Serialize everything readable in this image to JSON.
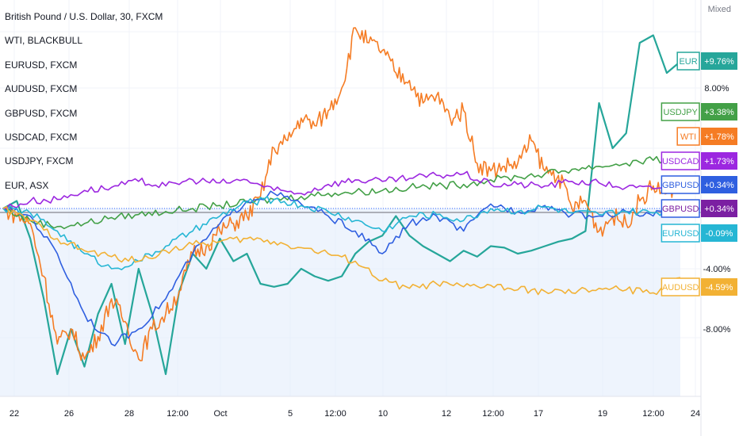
{
  "legend": {
    "items": [
      "British Pound / U.S. Dollar, 30, FXCM",
      "WTI, BLACKBULL",
      "EURUSD, FXCM",
      "AUDUSD, FXCM",
      "GBPUSD, FXCM",
      "USDCAD, FXCM",
      "USDJPY, FXCM",
      "EUR, ASX"
    ]
  },
  "scale_mode": "Mixed",
  "colors": {
    "EUR": "#26a69a",
    "WTI": "#f57c24",
    "USDJPY": "#43a047",
    "USDCAD": "#9c27e0",
    "GBPUSD": "#2f5fe0",
    "EURUSD": "#26b6d4",
    "AUDUSD": "#f2b134",
    "base": "#9598a1",
    "grid": "#f0f3fa",
    "area": "#e3ecfc"
  },
  "chart_data": {
    "type": "line",
    "x_ticks": [
      "22",
      "26",
      "28",
      "12:00",
      "Oct",
      "5",
      "12:00",
      "10",
      "12",
      "12:00",
      "17",
      "19",
      "12:00",
      "24"
    ],
    "y_ticks": [
      "8.00%",
      "-4.00%",
      "-8.00%"
    ],
    "ylim": [
      -12,
      14
    ],
    "series": [
      {
        "name": "EUR",
        "last_label": "+9.76%",
        "color": "#26a69a",
        "x": [
          0,
          2,
          4,
          6,
          8,
          10,
          12,
          14,
          16,
          18,
          20,
          22,
          24,
          26,
          28,
          30,
          32,
          34,
          36,
          38,
          40,
          42,
          44,
          46,
          48,
          50,
          52,
          54,
          56,
          58,
          60,
          62,
          64,
          66,
          68,
          70,
          72,
          74,
          76,
          78,
          80,
          82,
          84,
          86,
          88,
          90,
          92,
          94,
          96,
          98,
          100
        ],
        "y": [
          0,
          0.5,
          -2,
          -6,
          -11,
          -8,
          -10.5,
          -7,
          -5,
          -9,
          -4,
          -7,
          -11,
          -5.5,
          -3,
          -4,
          -2,
          -3.5,
          -3,
          -5,
          -5.2,
          -5,
          -4,
          -4.5,
          -4.8,
          -4.5,
          -3,
          -2.2,
          -1.8,
          -0.5,
          -1.8,
          -2.5,
          -3,
          -3.5,
          -2.8,
          -3.2,
          -2.5,
          -2.6,
          -3,
          -2.8,
          -2.5,
          -2.2,
          -2,
          -1.5,
          7,
          4,
          5,
          11,
          11.5,
          9,
          9.76
        ]
      },
      {
        "name": "WTI",
        "last_label": "+1.78%",
        "color": "#f57c24",
        "x": [
          0,
          2,
          4,
          6,
          8,
          10,
          12,
          14,
          16,
          18,
          20,
          22,
          24,
          26,
          28,
          30,
          32,
          34,
          36,
          38,
          40,
          42,
          44,
          46,
          48,
          50,
          52,
          54,
          56,
          58,
          60,
          62,
          64,
          66,
          68,
          70,
          72,
          74,
          76,
          78,
          80,
          82,
          84,
          86,
          88,
          90,
          92,
          94,
          96,
          98,
          100
        ],
        "y": [
          0,
          -0.5,
          -1,
          -4.5,
          -9,
          -8,
          -10,
          -8.5,
          -6,
          -7.5,
          -10,
          -8,
          -7,
          -5.5,
          -3,
          -2.5,
          -1.5,
          -1,
          -0.5,
          0.8,
          4,
          4.5,
          6,
          5.5,
          6.5,
          8,
          12,
          11,
          10.5,
          9,
          8.5,
          7,
          7.5,
          6,
          6.5,
          3,
          2.5,
          2.8,
          3,
          4.5,
          2.5,
          2.2,
          0,
          0.5,
          -1.5,
          -0.5,
          -1,
          0.5,
          1.5,
          1,
          1.78
        ]
      },
      {
        "name": "USDJPY",
        "last_label": "+3.38%",
        "color": "#43a047",
        "x": [
          0,
          4,
          8,
          12,
          16,
          20,
          24,
          28,
          32,
          36,
          40,
          44,
          48,
          52,
          56,
          60,
          64,
          68,
          72,
          76,
          80,
          84,
          88,
          92,
          96,
          100
        ],
        "y": [
          0,
          -0.8,
          -1.2,
          -1,
          -0.6,
          -0.4,
          -0.2,
          0,
          0.2,
          0.4,
          0.6,
          0.8,
          1.0,
          1.1,
          1.2,
          1.4,
          1.5,
          1.6,
          1.9,
          2.1,
          2.3,
          2.6,
          2.8,
          3.0,
          3.2,
          3.38
        ]
      },
      {
        "name": "USDCAD",
        "last_label": "+1.73%",
        "color": "#9c27e0",
        "x": [
          0,
          4,
          8,
          12,
          16,
          20,
          24,
          28,
          32,
          36,
          40,
          44,
          48,
          52,
          56,
          60,
          64,
          68,
          72,
          76,
          80,
          84,
          88,
          92,
          96,
          100
        ],
        "y": [
          0,
          0.5,
          0.6,
          1.2,
          1.4,
          1.8,
          1.5,
          1.9,
          1.7,
          1.9,
          1.2,
          1.0,
          1.6,
          1.9,
          1.8,
          2.0,
          2.2,
          2.3,
          1.6,
          1.6,
          1.5,
          1.8,
          1.7,
          1.4,
          1.3,
          1.73
        ]
      },
      {
        "name": "GBPUSD",
        "last_label": "+0.34%",
        "color": "#2f5fe0",
        "x": [
          0,
          4,
          8,
          12,
          16,
          20,
          24,
          28,
          32,
          36,
          40,
          44,
          48,
          52,
          56,
          60,
          64,
          68,
          72,
          76,
          80,
          84,
          88,
          92,
          96,
          100
        ],
        "y": [
          0,
          -0.5,
          -3,
          -7,
          -9,
          -8,
          -6,
          -3,
          -1,
          0.5,
          1,
          0.3,
          -0.5,
          -1.5,
          -3,
          -1,
          -0.5,
          -1.5,
          0.3,
          -0.2,
          0.2,
          -0.4,
          -0.5,
          -0.2,
          -0.5,
          0.34
        ]
      },
      {
        "name": "EURUSD",
        "last_label": "-0.09%",
        "color": "#26b6d4",
        "x": [
          0,
          4,
          8,
          12,
          16,
          20,
          24,
          28,
          32,
          36,
          40,
          44,
          48,
          52,
          56,
          60,
          64,
          68,
          72,
          76,
          80,
          84,
          88,
          92,
          96,
          100
        ],
        "y": [
          0,
          -0.3,
          -1.5,
          -3,
          -4,
          -3.5,
          -2.5,
          -1.5,
          -0.5,
          0.4,
          0.6,
          0.2,
          -0.2,
          -0.8,
          -1.5,
          -0.5,
          -0.4,
          -0.8,
          0.0,
          -0.2,
          0.1,
          -0.3,
          -0.4,
          -0.2,
          -0.3,
          -0.09
        ]
      },
      {
        "name": "AUDUSD",
        "last_label": "-4.59%",
        "color": "#f2b134",
        "x": [
          0,
          4,
          8,
          12,
          16,
          20,
          24,
          28,
          32,
          36,
          40,
          44,
          48,
          52,
          56,
          60,
          64,
          68,
          72,
          76,
          80,
          84,
          88,
          92,
          96,
          100
        ],
        "y": [
          0,
          -0.8,
          -2,
          -2.8,
          -3.2,
          -3.5,
          -2.8,
          -2.4,
          -2.2,
          -2.0,
          -2.2,
          -2.6,
          -3.0,
          -3.5,
          -4.8,
          -5.3,
          -5.0,
          -5.2,
          -5.1,
          -5.4,
          -5.5,
          -5.6,
          -5.3,
          -5.4,
          -5.6,
          -4.59
        ]
      }
    ]
  }
}
